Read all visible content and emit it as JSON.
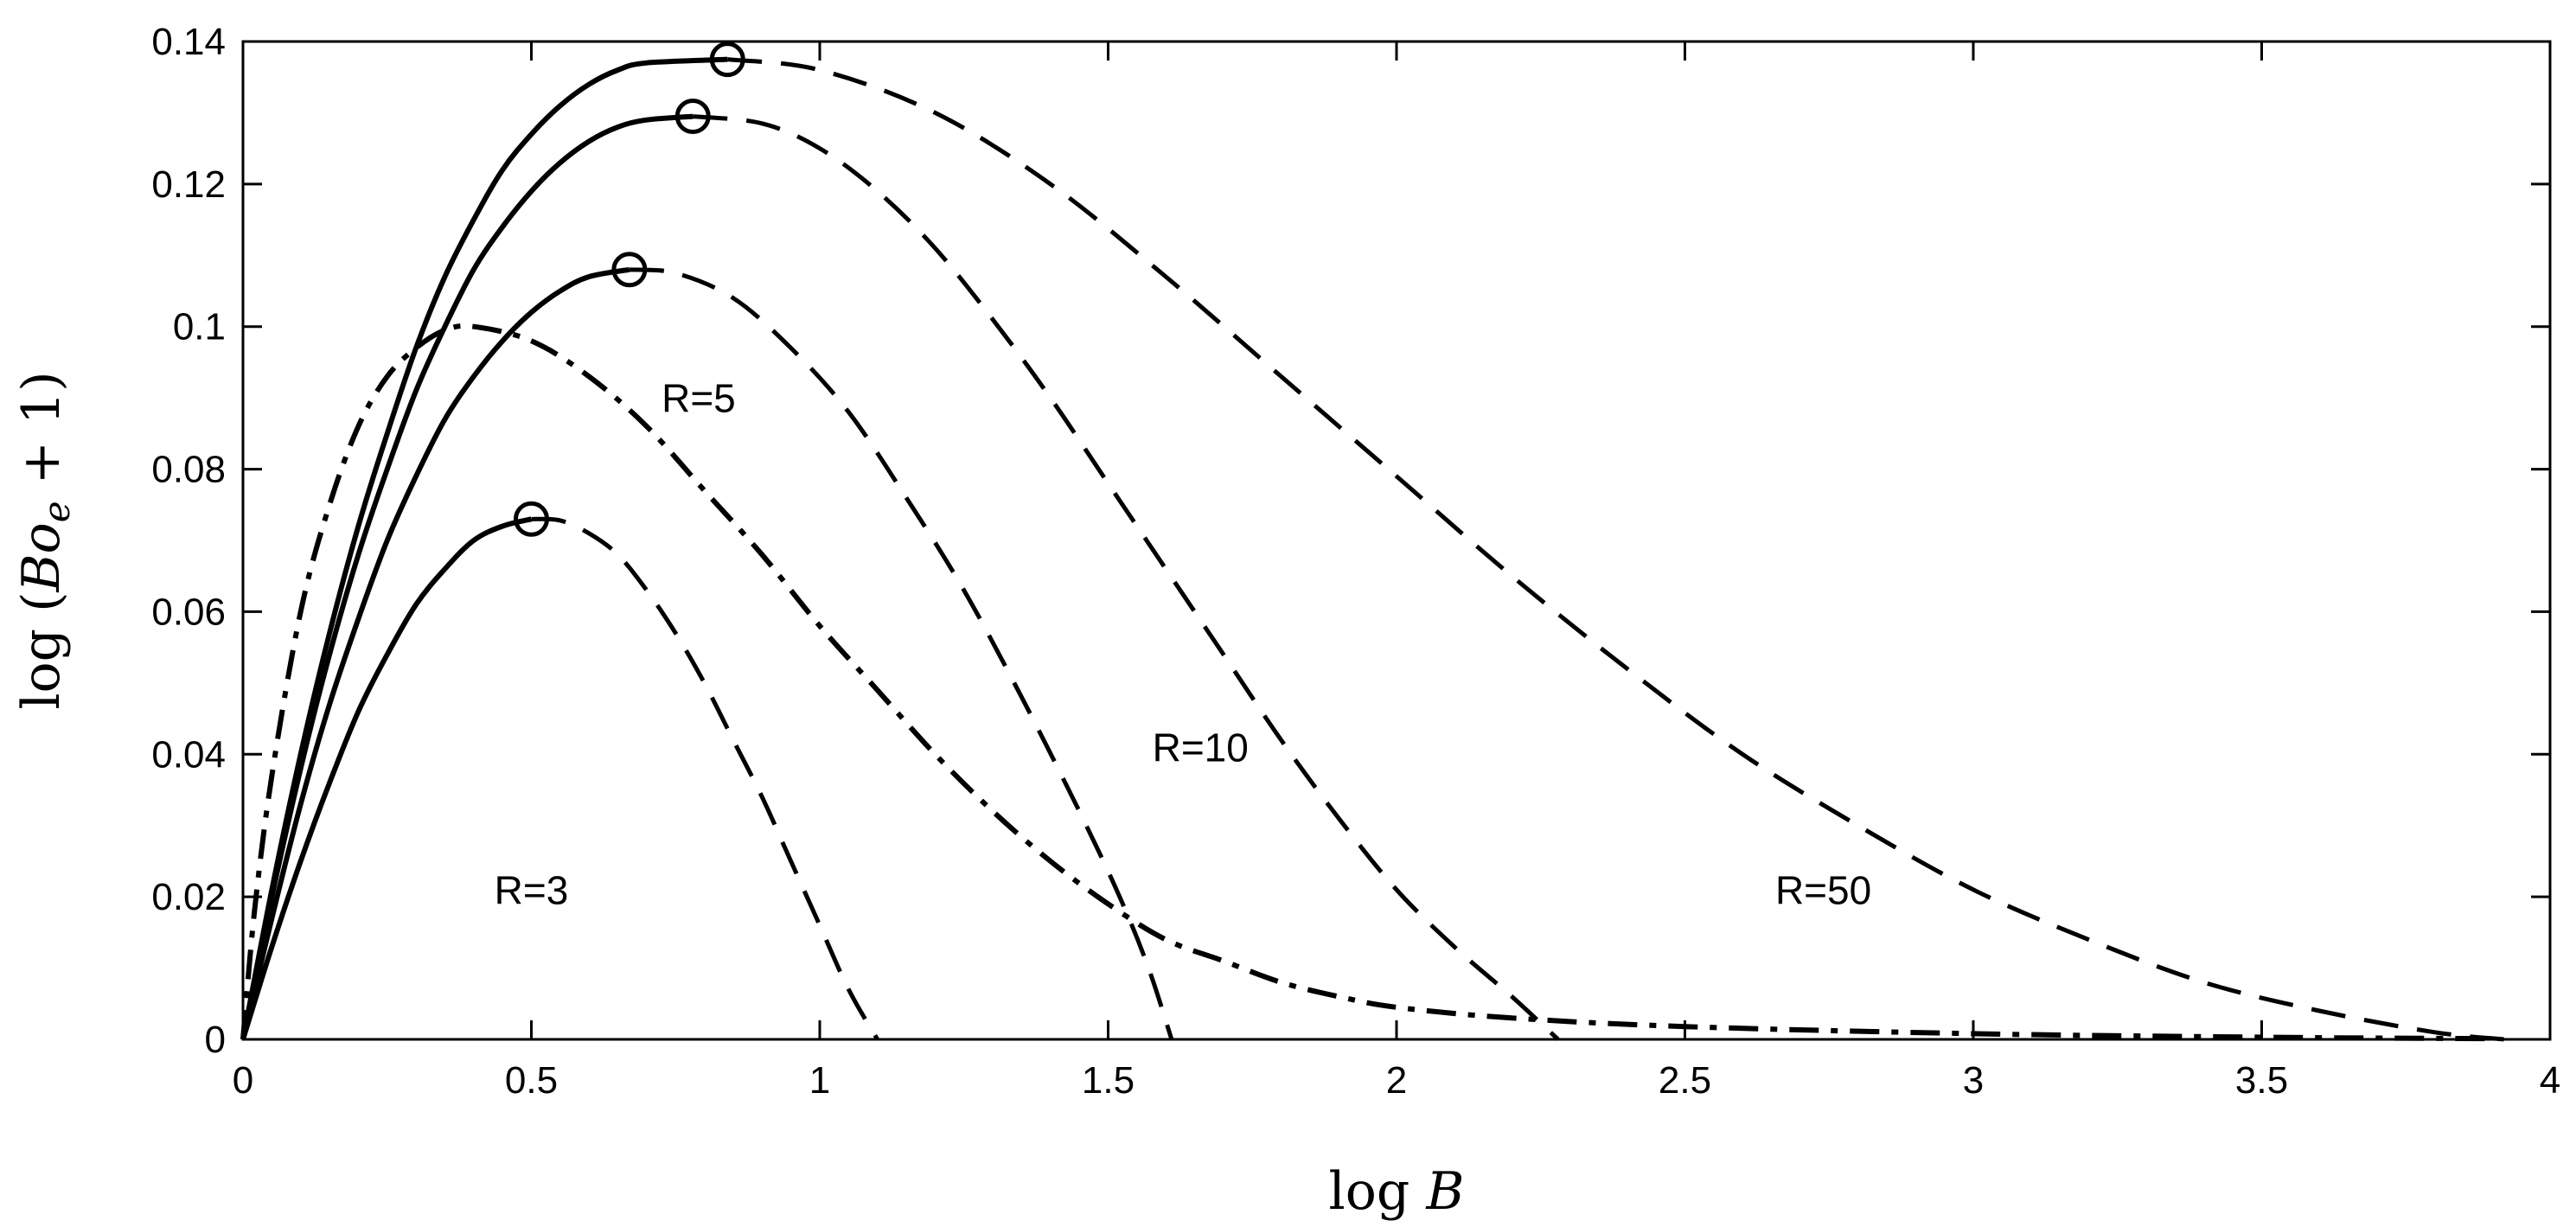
{
  "chart_data": {
    "type": "line",
    "xlabel": "log B",
    "ylabel": "log (Bo_e + 1)",
    "xlim": [
      0,
      4
    ],
    "ylim": [
      0,
      0.14
    ],
    "xticks": [
      0,
      0.5,
      1,
      1.5,
      2,
      2.5,
      3,
      3.5,
      4
    ],
    "xtick_labels": [
      "0",
      "0.5",
      "1",
      "1.5",
      "2",
      "2.5",
      "3",
      "3.5",
      "4"
    ],
    "yticks": [
      0,
      0.02,
      0.04,
      0.06,
      0.08,
      0.1,
      0.12,
      0.14
    ],
    "ytick_labels": [
      "0",
      "0.02",
      "0.04",
      "0.06",
      "0.08",
      "0.1",
      "0.12",
      "0.14"
    ],
    "grid": false,
    "series": [
      {
        "name": "R=3",
        "solid": [
          [
            0,
            0
          ],
          [
            0.05,
            0.013
          ],
          [
            0.1,
            0.025
          ],
          [
            0.15,
            0.036
          ],
          [
            0.2,
            0.046
          ],
          [
            0.25,
            0.054
          ],
          [
            0.3,
            0.061
          ],
          [
            0.35,
            0.066
          ],
          [
            0.4,
            0.07
          ],
          [
            0.45,
            0.072
          ],
          [
            0.5,
            0.073
          ]
        ],
        "dashed": [
          [
            0.5,
            0.073
          ],
          [
            0.55,
            0.0728
          ],
          [
            0.6,
            0.071
          ],
          [
            0.65,
            0.068
          ],
          [
            0.7,
            0.063
          ],
          [
            0.75,
            0.057
          ],
          [
            0.8,
            0.05
          ],
          [
            0.85,
            0.042
          ],
          [
            0.9,
            0.034
          ],
          [
            0.95,
            0.025
          ],
          [
            1.0,
            0.016
          ],
          [
            1.05,
            0.007
          ],
          [
            1.1,
            0.0
          ]
        ]
      },
      {
        "name": "R=5",
        "solid": [
          [
            0,
            0
          ],
          [
            0.05,
            0.017
          ],
          [
            0.1,
            0.033
          ],
          [
            0.15,
            0.047
          ],
          [
            0.2,
            0.059
          ],
          [
            0.25,
            0.07
          ],
          [
            0.3,
            0.079
          ],
          [
            0.35,
            0.087
          ],
          [
            0.4,
            0.093
          ],
          [
            0.45,
            0.098
          ],
          [
            0.5,
            0.102
          ],
          [
            0.55,
            0.105
          ],
          [
            0.6,
            0.107
          ],
          [
            0.67,
            0.108
          ]
        ],
        "dashed": [
          [
            0.67,
            0.108
          ],
          [
            0.75,
            0.1075
          ],
          [
            0.85,
            0.104
          ],
          [
            0.95,
            0.097
          ],
          [
            1.05,
            0.088
          ],
          [
            1.15,
            0.076
          ],
          [
            1.25,
            0.063
          ],
          [
            1.35,
            0.048
          ],
          [
            1.45,
            0.032
          ],
          [
            1.52,
            0.02
          ],
          [
            1.57,
            0.01
          ],
          [
            1.61,
            0.0
          ]
        ]
      },
      {
        "name": "R=10",
        "solid": [
          [
            0,
            0
          ],
          [
            0.05,
            0.02
          ],
          [
            0.1,
            0.038
          ],
          [
            0.15,
            0.054
          ],
          [
            0.2,
            0.068
          ],
          [
            0.25,
            0.08
          ],
          [
            0.3,
            0.091
          ],
          [
            0.35,
            0.1
          ],
          [
            0.4,
            0.108
          ],
          [
            0.45,
            0.114
          ],
          [
            0.5,
            0.119
          ],
          [
            0.55,
            0.123
          ],
          [
            0.6,
            0.126
          ],
          [
            0.65,
            0.128
          ],
          [
            0.7,
            0.129
          ],
          [
            0.78,
            0.1295
          ]
        ],
        "dashed": [
          [
            0.78,
            0.1295
          ],
          [
            0.9,
            0.1285
          ],
          [
            1.0,
            0.125
          ],
          [
            1.1,
            0.119
          ],
          [
            1.2,
            0.111
          ],
          [
            1.3,
            0.101
          ],
          [
            1.4,
            0.09
          ],
          [
            1.5,
            0.078
          ],
          [
            1.6,
            0.066
          ],
          [
            1.7,
            0.054
          ],
          [
            1.8,
            0.042
          ],
          [
            1.9,
            0.031
          ],
          [
            2.0,
            0.021
          ],
          [
            2.1,
            0.013
          ],
          [
            2.2,
            0.006
          ],
          [
            2.28,
            0.0
          ]
        ]
      },
      {
        "name": "R=50",
        "solid": [
          [
            0,
            0
          ],
          [
            0.05,
            0.021
          ],
          [
            0.1,
            0.04
          ],
          [
            0.15,
            0.057
          ],
          [
            0.2,
            0.072
          ],
          [
            0.25,
            0.085
          ],
          [
            0.3,
            0.097
          ],
          [
            0.35,
            0.107
          ],
          [
            0.4,
            0.115
          ],
          [
            0.45,
            0.122
          ],
          [
            0.5,
            0.127
          ],
          [
            0.55,
            0.131
          ],
          [
            0.6,
            0.134
          ],
          [
            0.65,
            0.136
          ],
          [
            0.7,
            0.137
          ],
          [
            0.84,
            0.1375
          ]
        ],
        "dashed": [
          [
            0.84,
            0.1375
          ],
          [
            1.0,
            0.136
          ],
          [
            1.2,
            0.13
          ],
          [
            1.4,
            0.12
          ],
          [
            1.6,
            0.107
          ],
          [
            1.8,
            0.093
          ],
          [
            2.0,
            0.079
          ],
          [
            2.2,
            0.065
          ],
          [
            2.4,
            0.052
          ],
          [
            2.6,
            0.04
          ],
          [
            2.8,
            0.03
          ],
          [
            3.0,
            0.021
          ],
          [
            3.2,
            0.014
          ],
          [
            3.4,
            0.008
          ],
          [
            3.6,
            0.004
          ],
          [
            3.8,
            0.001
          ],
          [
            3.92,
            0.0
          ]
        ]
      }
    ],
    "envelope": {
      "style": "dash-dot",
      "points": [
        [
          0,
          0
        ],
        [
          0.02,
          0.018
        ],
        [
          0.05,
          0.037
        ],
        [
          0.1,
          0.06
        ],
        [
          0.15,
          0.075
        ],
        [
          0.2,
          0.086
        ],
        [
          0.25,
          0.093
        ],
        [
          0.3,
          0.097
        ],
        [
          0.35,
          0.0995
        ],
        [
          0.4,
          0.1
        ],
        [
          0.5,
          0.098
        ],
        [
          0.6,
          0.093
        ],
        [
          0.7,
          0.086
        ],
        [
          0.8,
          0.077
        ],
        [
          0.9,
          0.068
        ],
        [
          1.0,
          0.058
        ],
        [
          1.1,
          0.049
        ],
        [
          1.2,
          0.04
        ],
        [
          1.3,
          0.032
        ],
        [
          1.4,
          0.025
        ],
        [
          1.5,
          0.019
        ],
        [
          1.6,
          0.014
        ],
        [
          1.7,
          0.011
        ],
        [
          1.8,
          0.008
        ],
        [
          1.9,
          0.006
        ],
        [
          2.0,
          0.0045
        ],
        [
          2.2,
          0.003
        ],
        [
          2.5,
          0.0018
        ],
        [
          3.0,
          0.0008
        ],
        [
          3.5,
          0.0003
        ],
        [
          3.9,
          0.0001
        ]
      ]
    },
    "maxima": [
      [
        0.5,
        0.073
      ],
      [
        0.67,
        0.108
      ],
      [
        0.78,
        0.1295
      ],
      [
        0.84,
        0.1375
      ]
    ],
    "annotations": [
      {
        "text": "R=3",
        "x": 0.5,
        "y": 0.019
      },
      {
        "text": "R=5",
        "x": 0.79,
        "y": 0.088
      },
      {
        "text": "R=10",
        "x": 1.66,
        "y": 0.039
      },
      {
        "text": "R=50",
        "x": 2.74,
        "y": 0.019
      }
    ]
  }
}
